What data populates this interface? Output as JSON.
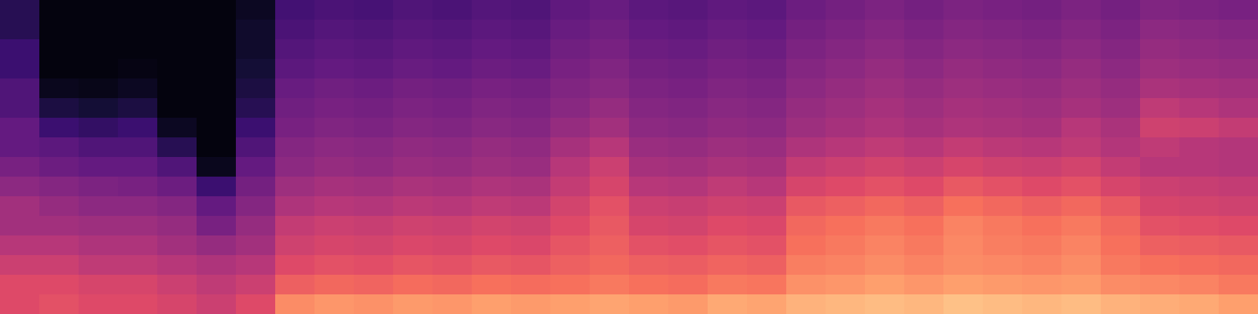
{
  "chart_data": {
    "type": "heatmap",
    "tick_labels": false,
    "zlim": [
      0,
      1
    ],
    "z": [
      [
        0.6,
        0.62,
        0.6,
        0.6,
        0.58,
        0.55,
        0.6,
        0.76,
        0.78,
        0.77,
        0.79,
        0.78,
        0.8,
        0.79,
        0.8,
        0.81,
        0.8,
        0.79,
        0.82,
        0.81,
        0.84,
        0.85,
        0.86,
        0.85,
        0.87,
        0.86,
        0.85,
        0.86,
        0.84,
        0.83,
        0.82,
        0.8
      ],
      [
        0.6,
        0.6,
        0.58,
        0.58,
        0.55,
        0.52,
        0.55,
        0.66,
        0.68,
        0.67,
        0.69,
        0.68,
        0.7,
        0.69,
        0.7,
        0.72,
        0.7,
        0.69,
        0.72,
        0.71,
        0.77,
        0.78,
        0.8,
        0.78,
        0.8,
        0.79,
        0.78,
        0.79,
        0.76,
        0.75,
        0.74,
        0.72
      ],
      [
        0.55,
        0.55,
        0.52,
        0.52,
        0.5,
        0.48,
        0.5,
        0.6,
        0.62,
        0.61,
        0.63,
        0.62,
        0.64,
        0.63,
        0.66,
        0.68,
        0.66,
        0.65,
        0.67,
        0.66,
        0.73,
        0.74,
        0.76,
        0.74,
        0.76,
        0.75,
        0.74,
        0.76,
        0.72,
        0.7,
        0.69,
        0.68
      ],
      [
        0.5,
        0.5,
        0.48,
        0.48,
        0.45,
        0.42,
        0.45,
        0.56,
        0.58,
        0.57,
        0.59,
        0.58,
        0.6,
        0.59,
        0.63,
        0.66,
        0.62,
        0.61,
        0.63,
        0.62,
        0.7,
        0.72,
        0.74,
        0.72,
        0.75,
        0.73,
        0.72,
        0.74,
        0.7,
        0.66,
        0.65,
        0.64
      ],
      [
        0.45,
        0.45,
        0.44,
        0.44,
        0.42,
        0.35,
        0.42,
        0.53,
        0.55,
        0.54,
        0.56,
        0.55,
        0.57,
        0.56,
        0.6,
        0.64,
        0.58,
        0.57,
        0.6,
        0.59,
        0.68,
        0.7,
        0.72,
        0.7,
        0.74,
        0.72,
        0.7,
        0.72,
        0.68,
        0.62,
        0.61,
        0.6
      ],
      [
        0.45,
        0.42,
        0.4,
        0.4,
        0.38,
        0.3,
        0.38,
        0.48,
        0.5,
        0.49,
        0.51,
        0.5,
        0.52,
        0.51,
        0.57,
        0.62,
        0.55,
        0.54,
        0.56,
        0.55,
        0.64,
        0.66,
        0.68,
        0.66,
        0.7,
        0.68,
        0.66,
        0.68,
        0.64,
        0.58,
        0.57,
        0.56
      ],
      [
        0.4,
        0.38,
        0.36,
        0.35,
        0.32,
        0.2,
        0.34,
        0.44,
        0.46,
        0.45,
        0.47,
        0.46,
        0.48,
        0.47,
        0.53,
        0.58,
        0.5,
        0.49,
        0.52,
        0.5,
        0.58,
        0.6,
        0.62,
        0.6,
        0.64,
        0.62,
        0.6,
        0.62,
        0.58,
        0.55,
        0.54,
        0.53
      ],
      [
        0.35,
        0.32,
        0.3,
        0.3,
        0.25,
        0.05,
        0.3,
        0.4,
        0.42,
        0.41,
        0.43,
        0.42,
        0.44,
        0.43,
        0.5,
        0.55,
        0.46,
        0.45,
        0.47,
        0.46,
        0.53,
        0.55,
        0.57,
        0.55,
        0.58,
        0.56,
        0.55,
        0.57,
        0.53,
        0.5,
        0.5,
        0.49
      ],
      [
        0.3,
        0.28,
        0.25,
        0.25,
        0.15,
        0.02,
        0.25,
        0.38,
        0.4,
        0.39,
        0.41,
        0.4,
        0.42,
        0.41,
        0.46,
        0.5,
        0.43,
        0.42,
        0.44,
        0.43,
        0.48,
        0.5,
        0.52,
        0.5,
        0.53,
        0.51,
        0.5,
        0.52,
        0.49,
        0.52,
        0.5,
        0.49
      ],
      [
        0.3,
        0.2,
        0.18,
        0.2,
        0.06,
        0.02,
        0.2,
        0.35,
        0.37,
        0.36,
        0.38,
        0.37,
        0.39,
        0.38,
        0.42,
        0.45,
        0.4,
        0.39,
        0.41,
        0.4,
        0.44,
        0.46,
        0.48,
        0.46,
        0.48,
        0.47,
        0.46,
        0.5,
        0.47,
        0.56,
        0.55,
        0.53
      ],
      [
        0.25,
        0.12,
        0.1,
        0.12,
        0.02,
        0.02,
        0.15,
        0.33,
        0.35,
        0.34,
        0.36,
        0.35,
        0.37,
        0.36,
        0.39,
        0.42,
        0.38,
        0.37,
        0.39,
        0.38,
        0.42,
        0.44,
        0.46,
        0.44,
        0.46,
        0.45,
        0.44,
        0.46,
        0.44,
        0.52,
        0.5,
        0.48
      ],
      [
        0.25,
        0.05,
        0.04,
        0.06,
        0.02,
        0.02,
        0.12,
        0.31,
        0.33,
        0.32,
        0.34,
        0.33,
        0.35,
        0.34,
        0.37,
        0.39,
        0.36,
        0.35,
        0.37,
        0.36,
        0.4,
        0.42,
        0.44,
        0.42,
        0.44,
        0.43,
        0.42,
        0.44,
        0.42,
        0.47,
        0.46,
        0.45
      ],
      [
        0.2,
        0.02,
        0.02,
        0.03,
        0.02,
        0.02,
        0.1,
        0.28,
        0.3,
        0.29,
        0.31,
        0.3,
        0.32,
        0.31,
        0.35,
        0.37,
        0.34,
        0.33,
        0.35,
        0.34,
        0.38,
        0.4,
        0.42,
        0.4,
        0.42,
        0.41,
        0.4,
        0.42,
        0.4,
        0.44,
        0.43,
        0.42
      ],
      [
        0.2,
        0.02,
        0.02,
        0.02,
        0.02,
        0.02,
        0.08,
        0.26,
        0.28,
        0.27,
        0.29,
        0.28,
        0.3,
        0.29,
        0.33,
        0.35,
        0.32,
        0.31,
        0.33,
        0.32,
        0.36,
        0.38,
        0.4,
        0.38,
        0.4,
        0.39,
        0.38,
        0.4,
        0.38,
        0.42,
        0.41,
        0.4
      ],
      [
        0.15,
        0.02,
        0.02,
        0.02,
        0.02,
        0.02,
        0.08,
        0.24,
        0.26,
        0.25,
        0.27,
        0.26,
        0.28,
        0.27,
        0.31,
        0.33,
        0.3,
        0.29,
        0.31,
        0.3,
        0.34,
        0.36,
        0.38,
        0.36,
        0.38,
        0.37,
        0.36,
        0.38,
        0.36,
        0.4,
        0.39,
        0.38
      ],
      [
        0.15,
        0.02,
        0.02,
        0.02,
        0.02,
        0.02,
        0.06,
        0.22,
        0.24,
        0.23,
        0.25,
        0.24,
        0.26,
        0.25,
        0.29,
        0.31,
        0.28,
        0.27,
        0.29,
        0.28,
        0.32,
        0.34,
        0.36,
        0.34,
        0.36,
        0.35,
        0.34,
        0.36,
        0.34,
        0.37,
        0.36,
        0.35
      ]
    ]
  }
}
